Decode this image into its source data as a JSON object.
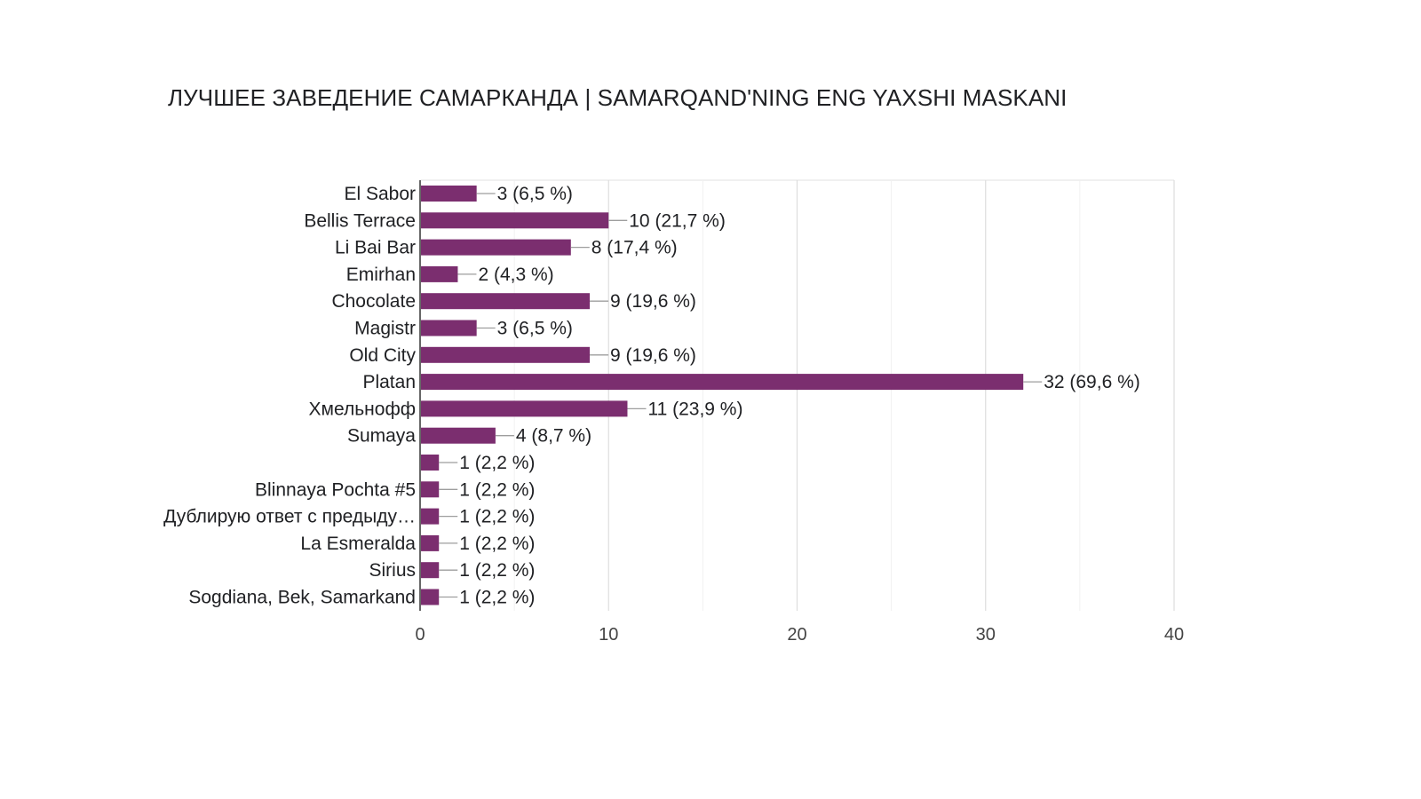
{
  "chart_data": {
    "type": "bar",
    "orientation": "horizontal",
    "title": "ЛУЧШЕЕ ЗАВЕДЕНИЕ САМАРКАНДА | SAMARQAND'NING ENG YAXSHI MASKANI",
    "categories": [
      "El Sabor",
      "Bellis Terrace",
      "Li Bai Bar",
      "Emirhan",
      "Chocolate",
      "Magistr",
      "Old City",
      "Platan",
      "Хмельнофф",
      "Sumaya",
      "",
      "Blinnaya Pochta #5",
      "Дублирую ответ с предыду…",
      "La Esmeralda",
      "Sirius",
      "Sogdiana, Bek, Samarkand"
    ],
    "values": [
      3,
      10,
      8,
      2,
      9,
      3,
      9,
      32,
      11,
      4,
      1,
      1,
      1,
      1,
      1,
      1
    ],
    "data_labels": [
      "3 (6,5 %)",
      "10 (21,7 %)",
      "8 (17,4 %)",
      "2 (4,3 %)",
      "9 (19,6 %)",
      "3 (6,5 %)",
      "9 (19,6 %)",
      "32 (69,6 %)",
      "11 (23,9 %)",
      "4 (8,7 %)",
      "1 (2,2 %)",
      "1 (2,2 %)",
      "1 (2,2 %)",
      "1 (2,2 %)",
      "1 (2,2 %)",
      "1 (2,2 %)"
    ],
    "xlim": [
      0,
      40
    ],
    "xticks": [
      "0",
      "10",
      "20",
      "30",
      "40"
    ],
    "tick_values": [
      0,
      10,
      20,
      30,
      40
    ],
    "minor_gridlines": [
      5,
      15,
      25,
      35
    ],
    "grid": true,
    "legend": "none",
    "bar_color": "#7b2e6f"
  }
}
